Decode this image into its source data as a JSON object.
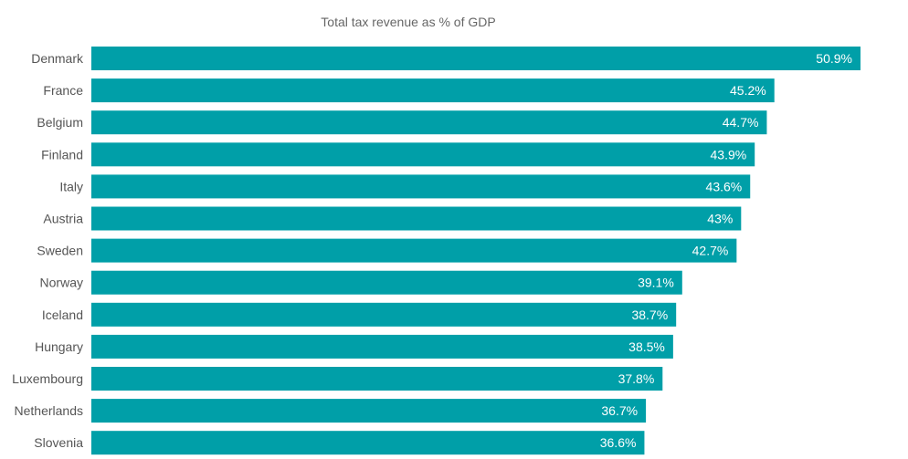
{
  "chart_data": {
    "type": "bar",
    "orientation": "horizontal",
    "title": "Total tax revenue as % of GDP",
    "categories": [
      "Denmark",
      "France",
      "Belgium",
      "Finland",
      "Italy",
      "Austria",
      "Sweden",
      "Norway",
      "Iceland",
      "Hungary",
      "Luxembourg",
      "Netherlands",
      "Slovenia"
    ],
    "values": [
      50.9,
      45.2,
      44.7,
      43.9,
      43.6,
      43,
      42.7,
      39.1,
      38.7,
      38.5,
      37.8,
      36.7,
      36.6
    ],
    "value_labels": [
      "50.9%",
      "45.2%",
      "44.7%",
      "43.9%",
      "43.6%",
      "43%",
      "42.7%",
      "39.1%",
      "38.7%",
      "38.5%",
      "37.8%",
      "36.7%",
      "36.6%"
    ],
    "xlim": [
      0,
      50.9
    ],
    "xlabel": "",
    "ylabel": "",
    "grid": false,
    "bar_color": "#009fa8",
    "label_color": "#ffffff"
  }
}
